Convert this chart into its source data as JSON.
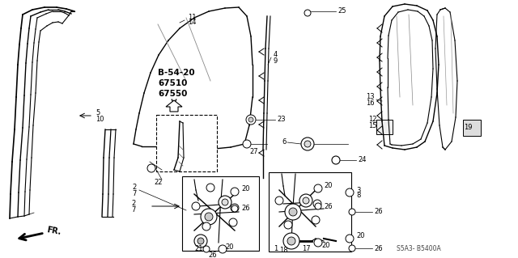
{
  "bg_color": "#ffffff",
  "figsize": [
    6.4,
    3.19
  ],
  "dpi": 100,
  "watermark": "S5A3- B5400A",
  "bold_labels": [
    "B-54-20",
    "67510",
    "67550"
  ]
}
